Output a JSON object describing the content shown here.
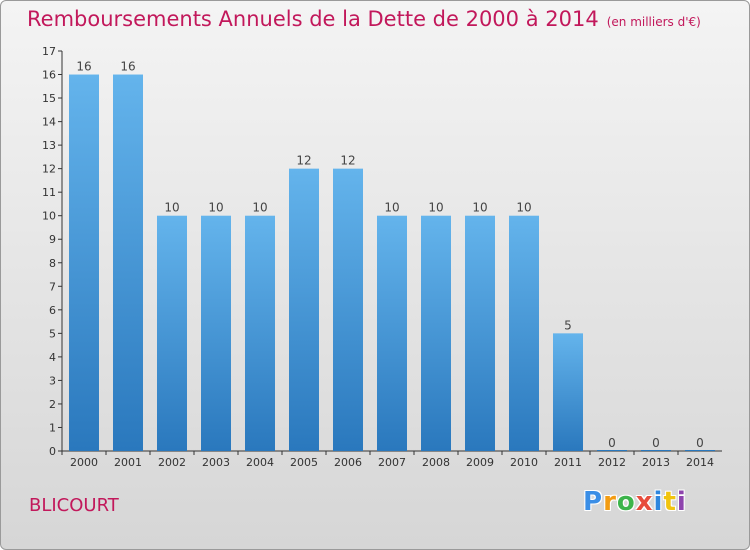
{
  "title": "Remboursements Annuels de la Dette de 2000 à 2014",
  "subtitle": "(en milliers d'€)",
  "commune": "BLICOURT",
  "logo": {
    "letters": [
      "P",
      "r",
      "o",
      "x",
      "i",
      "t",
      "i"
    ]
  },
  "colors": {
    "title": "#c2185b",
    "bar_top": "#64b4ec",
    "bar_bottom": "#2a78bd",
    "logo": [
      "#3a8ee6",
      "#f39c12",
      "#3cb44b",
      "#e74c3c",
      "#2e86de",
      "#f1c40f",
      "#8e44ad"
    ]
  },
  "chart_data": {
    "type": "bar",
    "title": "Remboursements Annuels de la Dette de 2000 à 2014",
    "subtitle": "(en milliers d'€)",
    "categories": [
      "2000",
      "2001",
      "2002",
      "2003",
      "2004",
      "2005",
      "2006",
      "2007",
      "2008",
      "2009",
      "2010",
      "2011",
      "2012",
      "2013",
      "2014"
    ],
    "values": [
      16,
      16,
      10,
      10,
      10,
      12,
      12,
      10,
      10,
      10,
      10,
      5,
      0,
      0,
      0
    ],
    "data_labels": [
      "16",
      "16",
      "10",
      "10",
      "10",
      "12",
      "12",
      "10",
      "10",
      "10",
      "10",
      "5",
      "0",
      "0",
      "0"
    ],
    "yticks": [
      "0",
      "1",
      "2",
      "3",
      "4",
      "5",
      "6",
      "7",
      "8",
      "9",
      "10",
      "11",
      "12",
      "13",
      "14",
      "15",
      "16",
      "17"
    ],
    "ylim": [
      0,
      17
    ],
    "grid": false,
    "legend": "none"
  }
}
